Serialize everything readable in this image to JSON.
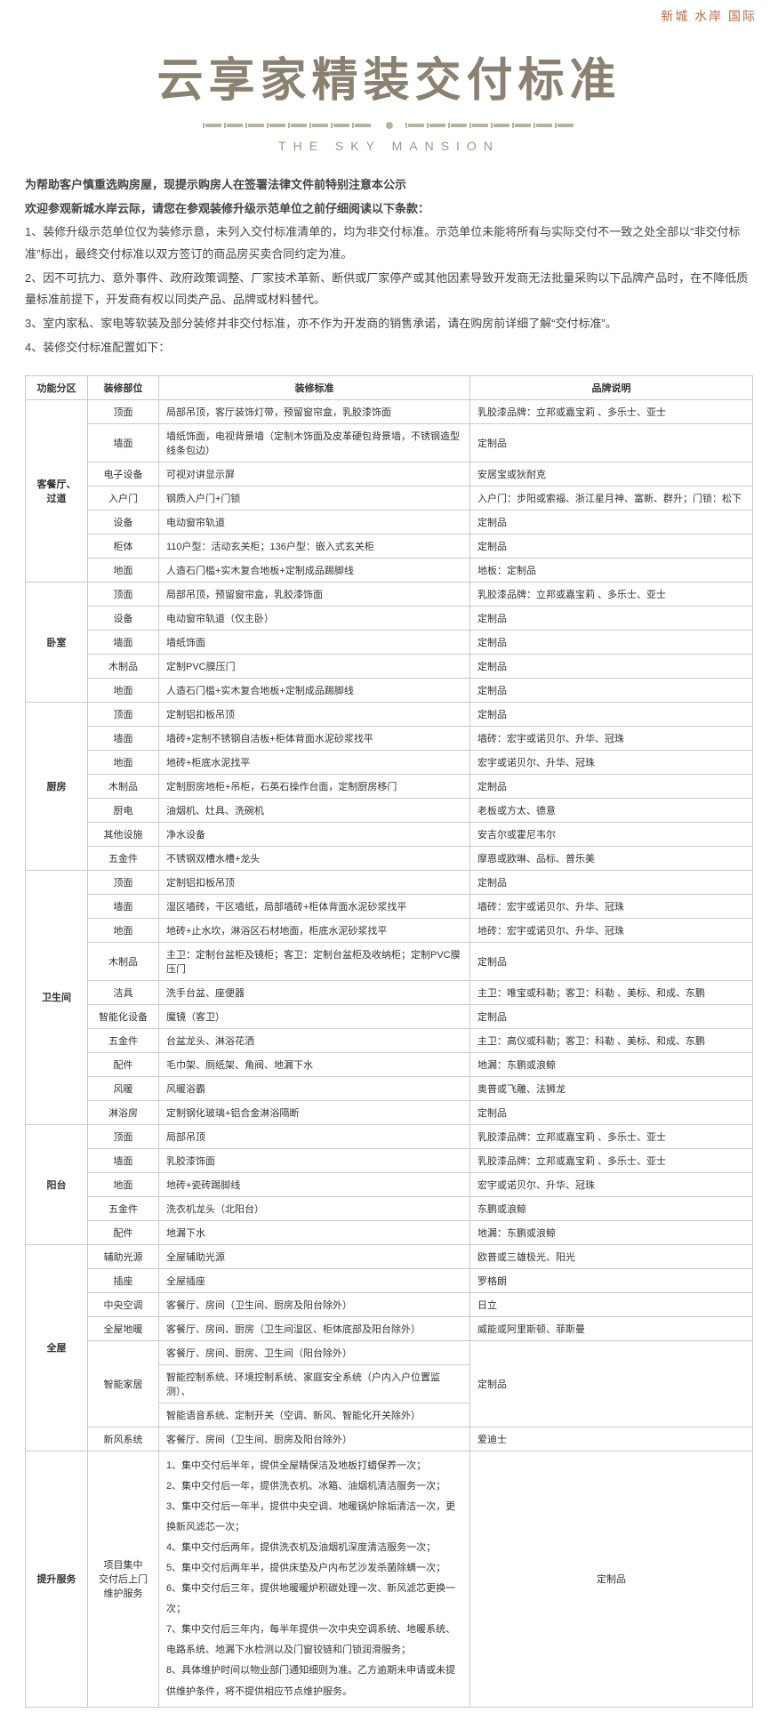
{
  "top_brand": "新城 水岸 国际",
  "main_title": "云享家精装交付标准",
  "subtitle": "THE SKY MANSION",
  "notice": {
    "line1": "为帮助客户慎重选购房屋，现提示购房人在签署法律文件前特别注意本公示",
    "line2": "欢迎参观新城水岸云际，请您在参观装修升级示范单位之前仔细阅读以下条款：",
    "p1": "1、装修升级示范单位仅为装修示意，未列入交付标准清单的，均为非交付标准。示范单位未能将所有与实际交付不一致之处全部以“非交付标准”标出，最终交付标准以双方签订的商品房买卖合同约定为准。",
    "p2": "2、因不可抗力、意外事件、政府政策调整、厂家技术革新、断供或厂家停产或其他因素导致开发商无法批量采购以下品牌产品时，在不降低质量标准前提下，开发商有权以同类产品、品牌或材料替代。",
    "p3": "3、室内家私、家电等软装及部分装修并非交付标准，亦不作为开发商的销售承诺，请在购房前详细了解“交付标准”。",
    "p4": "4、装修交付标准配置如下："
  },
  "headers": {
    "c1": "功能分区",
    "c2": "装修部位",
    "c3": "装修标准",
    "c4": "品牌说明"
  },
  "zones": [
    {
      "name": "客餐厅、过道",
      "rows": [
        {
          "part": "顶面",
          "std": "局部吊顶，客厅装饰灯带，预留窗帘盒，乳胶漆饰面",
          "brand": "乳胶漆品牌：立邦或嘉宝莉 、多乐士、亚士"
        },
        {
          "part": "墙面",
          "std": "墙纸饰面，电视背景墙（定制木饰面及皮革硬包背景墙，不锈钢造型线条包边）",
          "brand": "定制品"
        },
        {
          "part": "电子设备",
          "std": "可视对讲显示屏",
          "brand": "安居宝或狄耐克"
        },
        {
          "part": "入户门",
          "std": "钢质入户门+门锁",
          "brand": "入户门：步阳或索福、浙江星月神、富新、群升；门锁：松下"
        },
        {
          "part": "设备",
          "std": "电动窗帘轨道",
          "brand": "定制品"
        },
        {
          "part": "柜体",
          "std": "110户型：活动玄关柜；136户型：嵌入式玄关柜",
          "brand": "定制品"
        },
        {
          "part": "地面",
          "std": "人造石门槛+实木复合地板+定制成品踢脚线",
          "brand": "地板：定制品"
        }
      ]
    },
    {
      "name": "卧室",
      "rows": [
        {
          "part": "顶面",
          "std": "局部吊顶，预留窗帘盒，乳胶漆饰面",
          "brand": "乳胶漆品牌：立邦或嘉宝莉 、多乐士、亚士"
        },
        {
          "part": "设备",
          "std": "电动窗帘轨道（仅主卧）",
          "brand": "定制品"
        },
        {
          "part": "墙面",
          "std": "墙纸饰面",
          "brand": "定制品"
        },
        {
          "part": "木制品",
          "std": "定制PVC膜压门",
          "brand": "定制品"
        },
        {
          "part": "地面",
          "std": "人造石门槛+实木复合地板+定制成品踢脚线",
          "brand": "定制品"
        }
      ]
    },
    {
      "name": "厨房",
      "rows": [
        {
          "part": "顶面",
          "std": "定制铝扣板吊顶",
          "brand": "定制品"
        },
        {
          "part": "墙面",
          "std": "墙砖+定制不锈钢自洁板+柜体背面水泥砂浆找平",
          "brand": "墙砖：宏宇或诺贝尔、升华、冠珠"
        },
        {
          "part": "地面",
          "std": "地砖+柜底水泥找平",
          "brand": "宏宇或诺贝尔、升华、冠珠"
        },
        {
          "part": "木制品",
          "std": "定制厨房地柜+吊柜，石英石操作台面，定制厨房移门",
          "brand": "定制品"
        },
        {
          "part": "厨电",
          "std": "油烟机、灶具、洗碗机",
          "brand": "老板或方太、德意"
        },
        {
          "part": "其他设施",
          "std": "净水设备",
          "brand": "安吉尔或霍尼韦尔"
        },
        {
          "part": "五金件",
          "std": "不锈钢双槽水槽+龙头",
          "brand": "摩恩或欧琳、品标、普乐美"
        }
      ]
    },
    {
      "name": "卫生间",
      "rows": [
        {
          "part": "顶面",
          "std": "定制铝扣板吊顶",
          "brand": "定制品"
        },
        {
          "part": "墙面",
          "std": "湿区墙砖，干区墙纸，局部墙砖+柜体背面水泥砂浆找平",
          "brand": "墙砖：宏宇或诺贝尔、升华、冠珠"
        },
        {
          "part": "地面",
          "std": "地砖+止水坎，淋浴区石材地面，柜底水泥砂浆找平",
          "brand": "地砖：宏宇或诺贝尔、升华、冠珠"
        },
        {
          "part": "木制品",
          "std": "主卫：定制台盆柜及镜柜；客卫：定制台盆柜及收纳柜；定制PVC膜压门",
          "brand": "定制品"
        },
        {
          "part": "洁具",
          "std": "洗手台盆、座便器",
          "brand": "主卫：唯宝或科勒；客卫：科勒 、美标、和成、东鹏"
        },
        {
          "part": "智能化设备",
          "std": "魔镜（客卫）",
          "brand": "定制品"
        },
        {
          "part": "五金件",
          "std": "台盆龙头、淋浴花洒",
          "brand": "主卫：高仪或科勒；客卫：科勒 、美标、和成、东鹏"
        },
        {
          "part": "配件",
          "std": "毛巾架、厕纸架、角阀、地漏下水",
          "brand": "地漏：东鹏或浪鲸"
        },
        {
          "part": "风暖",
          "std": "风暖浴霸",
          "brand": "奥普或飞雕、法狮龙"
        },
        {
          "part": "淋浴房",
          "std": "定制钢化玻璃+铝合金淋浴隔断",
          "brand": "定制品"
        }
      ]
    },
    {
      "name": "阳台",
      "rows": [
        {
          "part": "顶面",
          "std": "局部吊顶",
          "brand": "乳胶漆品牌：立邦或嘉宝莉 、多乐士、亚士"
        },
        {
          "part": "墙面",
          "std": "乳胶漆饰面",
          "brand": "乳胶漆品牌：立邦或嘉宝莉 、多乐士、亚士"
        },
        {
          "part": "地面",
          "std": "地砖+瓷砖踢脚线",
          "brand": "宏宇或诺贝尔、升华、冠珠"
        },
        {
          "part": "五金件",
          "std": "洗衣机龙头（北阳台）",
          "brand": "东鹏或浪鲸"
        },
        {
          "part": "配件",
          "std": "地漏下水",
          "brand": "地漏：东鹏或浪鲸"
        }
      ]
    },
    {
      "name": "全屋",
      "rows": [
        {
          "part": "辅助光源",
          "std": "全屋辅助光源",
          "brand": "欧普或三雄极光、阳光"
        },
        {
          "part": "插座",
          "std": "全屋插座",
          "brand": "罗格朗"
        },
        {
          "part": "中央空调",
          "std": "客餐厅、房间（卫生间、厨房及阳台除外）",
          "brand": "日立"
        },
        {
          "part": "全屋地暖",
          "std": "客餐厅、房间、厨房（卫生间湿区、柜体底部及阳台除外）",
          "brand": "威能或阿里斯顿、菲斯曼"
        },
        {
          "part": "智能家居",
          "std_multi": [
            "客餐厅、房间、厨房、卫生间（阳台除外）",
            "智能控制系统、环境控制系统、家庭安全系统（户内入户位置监测）、",
            "智能语音系统、定制开关（空调、新风、智能化开关除外）"
          ],
          "brand": "定制品"
        },
        {
          "part": "新风系统",
          "std": "客餐厅、房间（卫生间、厨房及阳台除外）",
          "brand": "爱迪士"
        }
      ]
    }
  ],
  "service_zone": {
    "name": "提升服务",
    "part": "项目集中\n交付后上门\n维护服务",
    "brand": "定制品",
    "items": [
      "1、集中交付后半年，提供全屋精保洁及地板打蜡保养一次；",
      "2、集中交付后一年，提供洗衣机、冰箱、油烟机清洁服务一次；",
      "3、集中交付后一年半，提供中央空调、地暖锅炉除垢清洁一次，更换新风滤芯一次；",
      "4、集中交付后两年，提供洗衣机及油烟机深度清洁服务一次；",
      "5、集中交付后两年半，提供床垫及户内布艺沙发杀菌除螨一次；",
      "6、集中交付后三年，提供地暖暖炉积碳处理一次、新风滤芯更换一次；",
      "7、集中交付后三年内，每半年提供一次中央空调系统、地暖系统、电路系统、地漏下水检测以及门窗铰链和门锁润滑服务；",
      "8、具体维护时间以物业部门通知细则为准。乙方逾期未申请或未提供维护条件，将不提供相应节点维护服务。"
    ]
  },
  "colors": {
    "title": "#8a8171",
    "brand": "#b06f48",
    "border": "#c9c9c9"
  }
}
